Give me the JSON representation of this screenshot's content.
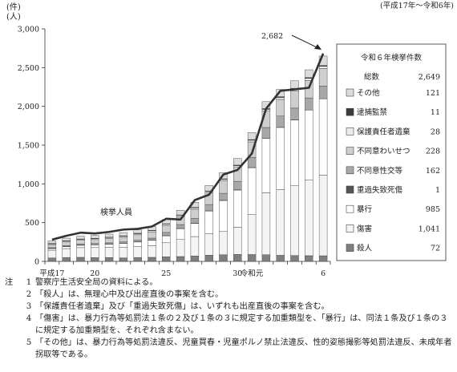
{
  "chart_data": {
    "type": "bar",
    "stacked": true,
    "unit_top": "(件)",
    "unit_bottom": "(人)",
    "period": "(平成17年～令和6年)",
    "ylim": [
      0,
      3000
    ],
    "yticks": [
      "0",
      "500",
      "1,000",
      "1,500",
      "2,000",
      "2,500",
      "3,000"
    ],
    "x_tick_labels": [
      {
        "index": 0,
        "label": "平成17"
      },
      {
        "index": 3,
        "label": "20"
      },
      {
        "index": 8,
        "label": "25"
      },
      {
        "index": 13,
        "label": "30"
      },
      {
        "index": 14,
        "label": "令和元"
      },
      {
        "index": 19,
        "label": "6"
      }
    ],
    "categories": [
      "平成17",
      "18",
      "19",
      "20",
      "21",
      "22",
      "23",
      "24",
      "25",
      "26",
      "27",
      "28",
      "29",
      "30",
      "令和元",
      "2",
      "3",
      "4",
      "5",
      "6"
    ],
    "series": [
      {
        "name": "殺人",
        "color": "#7f7f7f",
        "values": [
          44,
          50,
          52,
          48,
          50,
          45,
          50,
          52,
          60,
          62,
          70,
          80,
          85,
          90,
          88,
          85,
          78,
          75,
          73,
          72
        ]
      },
      {
        "name": "傷害",
        "color": "#f4f4f4",
        "values": [
          100,
          115,
          125,
          130,
          130,
          135,
          140,
          150,
          180,
          220,
          250,
          280,
          300,
          350,
          520,
          800,
          850,
          900,
          980,
          1041
        ]
      },
      {
        "name": "暴行",
        "color": "#ffffff",
        "values": [
          20,
          25,
          30,
          35,
          40,
          50,
          60,
          70,
          90,
          140,
          170,
          290,
          400,
          480,
          600,
          700,
          800,
          850,
          900,
          985
        ]
      },
      {
        "name": "重過失致死傷",
        "color": "#555555",
        "values": [
          3,
          3,
          3,
          3,
          3,
          3,
          3,
          3,
          3,
          3,
          3,
          3,
          3,
          3,
          3,
          2,
          2,
          2,
          1,
          1
        ]
      },
      {
        "name": "不同意性交等",
        "color": "#a8a8a8",
        "values": [
          10,
          12,
          14,
          15,
          16,
          18,
          20,
          25,
          40,
          50,
          60,
          80,
          90,
          110,
          130,
          140,
          145,
          150,
          155,
          162
        ]
      },
      {
        "name": "不同意わいせつ",
        "color": "#cfcfcf",
        "values": [
          40,
          45,
          48,
          50,
          55,
          60,
          70,
          80,
          90,
          100,
          120,
          150,
          160,
          180,
          200,
          210,
          215,
          220,
          225,
          228
        ]
      },
      {
        "name": "保護責任者遺棄",
        "color": "#ebebeb",
        "values": [
          10,
          11,
          12,
          12,
          13,
          14,
          14,
          15,
          16,
          17,
          18,
          18,
          19,
          20,
          22,
          24,
          25,
          26,
          27,
          28
        ]
      },
      {
        "name": "逮捕監禁",
        "color": "#3a3a3a",
        "values": [
          5,
          5,
          5,
          5,
          5,
          5,
          6,
          6,
          6,
          7,
          7,
          8,
          8,
          9,
          9,
          10,
          10,
          10,
          11,
          11
        ]
      },
      {
        "name": "その他",
        "color": "#dcdcdc",
        "values": [
          32,
          34,
          36,
          38,
          40,
          42,
          44,
          50,
          55,
          61,
          65,
          70,
          80,
          85,
          90,
          90,
          94,
          97,
          100,
          121
        ]
      }
    ],
    "line": {
      "name": "検挙人員",
      "values": [
        280,
        330,
        370,
        360,
        380,
        410,
        420,
        450,
        550,
        540,
        790,
        860,
        1120,
        1180,
        1390,
        1970,
        2200,
        2220,
        2240,
        2682
      ]
    },
    "line_label": "検挙人員",
    "callout": "2,682",
    "legend": {
      "title": "令和６年検挙件数",
      "total_label": "総数",
      "total_value": "2,649",
      "items": [
        {
          "name": "その他",
          "value": "121",
          "color": "#dcdcdc"
        },
        {
          "name": "逮捕監禁",
          "value": "11",
          "color": "#3a3a3a"
        },
        {
          "name": "保護責任者遺棄",
          "value": "28",
          "color": "#ebebeb"
        },
        {
          "name": "不同意わいせつ",
          "value": "228",
          "color": "#cfcfcf"
        },
        {
          "name": "不同意性交等",
          "value": "162",
          "color": "#a8a8a8"
        },
        {
          "name": "重過失致死傷",
          "value": "1",
          "color": "#555555"
        },
        {
          "name": "暴行",
          "value": "985",
          "color": "#ffffff"
        },
        {
          "name": "傷害",
          "value": "1,041",
          "color": "#f4f4f4"
        },
        {
          "name": "殺人",
          "value": "72",
          "color": "#7f7f7f"
        }
      ]
    }
  },
  "notes": {
    "head": "注",
    "items": [
      {
        "num": "1",
        "text": "警察庁生活安全局の資料による。"
      },
      {
        "num": "2",
        "text": "「殺人」は、無理心中及び出産直後の事案を含む。"
      },
      {
        "num": "3",
        "text": "「保護責任者遺棄」及び「重過失致死傷」は、いずれも出産直後の事案を含む。"
      },
      {
        "num": "4",
        "text": "「傷害」は、暴力行為等処罰法１条の２及び１条の３に規定する加重類型を、「暴行」は、同法１条及び１条の３に規定する加重類型を、それぞれ含まない。"
      },
      {
        "num": "5",
        "text": "「その他」は、暴力行為等処罰法違反、児童買春・児童ポルノ禁止法違反、性的姿態撮影等処罰法違反、未成年者拐取等である。"
      }
    ]
  }
}
